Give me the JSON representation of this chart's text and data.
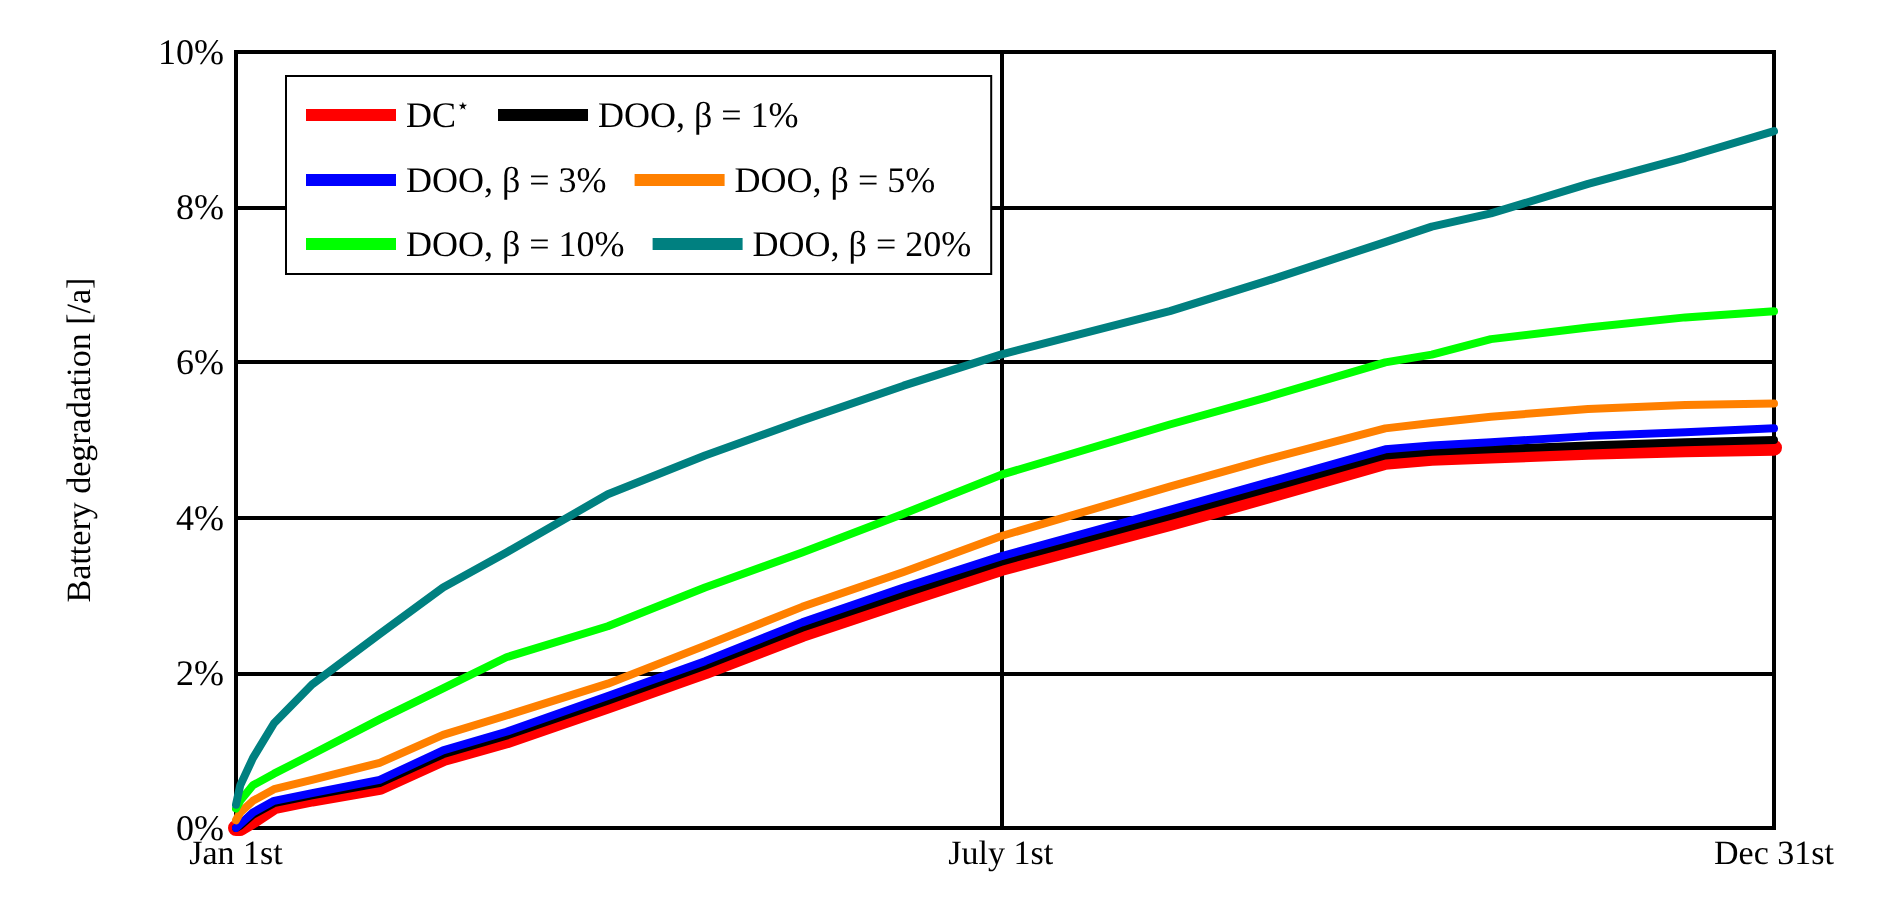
{
  "chart_data": {
    "type": "line",
    "ylabel": "Battery degradation [/a]",
    "x": [
      "--01-01",
      "--01-02",
      "--01-05",
      "--01-10",
      "--01-19",
      "--02-04",
      "--02-19",
      "--03-06",
      "--03-30",
      "--04-22",
      "--05-15",
      "--06-08",
      "--07-01",
      "--08-10",
      "--09-02",
      "--09-30",
      "--10-11",
      "--10-25",
      "--11-17",
      "--12-10",
      "--12-31"
    ],
    "xlim": [
      "--01-01",
      "--12-31"
    ],
    "xticks": [
      {
        "value": "--01-01",
        "label": "Jan 1st"
      },
      {
        "value": "--07-01",
        "label": "July 1st"
      },
      {
        "value": "--12-31",
        "label": "Dec 31st"
      }
    ],
    "ylim": [
      0,
      10
    ],
    "yticks": [
      {
        "value": 0,
        "label": "0%"
      },
      {
        "value": 2,
        "label": "2%"
      },
      {
        "value": 4,
        "label": "4%"
      },
      {
        "value": 6,
        "label": "6%"
      },
      {
        "value": 8,
        "label": "8%"
      },
      {
        "value": 10,
        "label": "10%"
      }
    ],
    "grid": true,
    "legend": "top left",
    "marker": "none",
    "line_style": "solid",
    "series": [
      {
        "name": "DC$^{⋆}$",
        "color": "#ff0000",
        "values": [
          0,
          0,
          0.1,
          0.28,
          0.38,
          0.53,
          0.9,
          1.13,
          1.58,
          2.02,
          2.5,
          2.94,
          3.35,
          3.93,
          4.28,
          4.72,
          4.77,
          4.8,
          4.85,
          4.88,
          4.9
        ]
      },
      {
        "name": "DOO, β = 1%",
        "color": "#000000",
        "values": [
          0,
          0.03,
          0.17,
          0.32,
          0.42,
          0.58,
          0.95,
          1.19,
          1.64,
          2.09,
          2.58,
          3.02,
          3.43,
          4.02,
          4.37,
          4.8,
          4.85,
          4.88,
          4.93,
          4.97,
          5.0
        ]
      },
      {
        "name": "DOO, β = 3%",
        "color": "#0000ff",
        "values": [
          0,
          0.05,
          0.2,
          0.35,
          0.45,
          0.62,
          1.0,
          1.24,
          1.7,
          2.15,
          2.65,
          3.1,
          3.5,
          4.1,
          4.45,
          4.88,
          4.93,
          4.97,
          5.05,
          5.1,
          5.15
        ]
      },
      {
        "name": "DOO, β = 5%",
        "color": "#ff8000",
        "values": [
          0.1,
          0.2,
          0.35,
          0.5,
          0.62,
          0.84,
          1.2,
          1.45,
          1.86,
          2.35,
          2.85,
          3.3,
          3.76,
          4.4,
          4.75,
          5.15,
          5.22,
          5.3,
          5.4,
          5.45,
          5.47
        ]
      },
      {
        "name": "DOO, β = 10%",
        "color": "#00ff00",
        "values": [
          0.25,
          0.35,
          0.55,
          0.7,
          0.95,
          1.4,
          1.8,
          2.2,
          2.6,
          3.1,
          3.55,
          4.05,
          4.55,
          5.2,
          5.55,
          6.0,
          6.1,
          6.3,
          6.45,
          6.58,
          6.66
        ]
      },
      {
        "name": "DOO, β = 20%",
        "color": "#008080",
        "values": [
          0.3,
          0.55,
          0.9,
          1.35,
          1.85,
          2.5,
          3.1,
          3.55,
          4.3,
          4.8,
          5.25,
          5.7,
          6.1,
          6.66,
          7.05,
          7.55,
          7.75,
          7.92,
          8.3,
          8.64,
          8.98
        ]
      }
    ]
  }
}
